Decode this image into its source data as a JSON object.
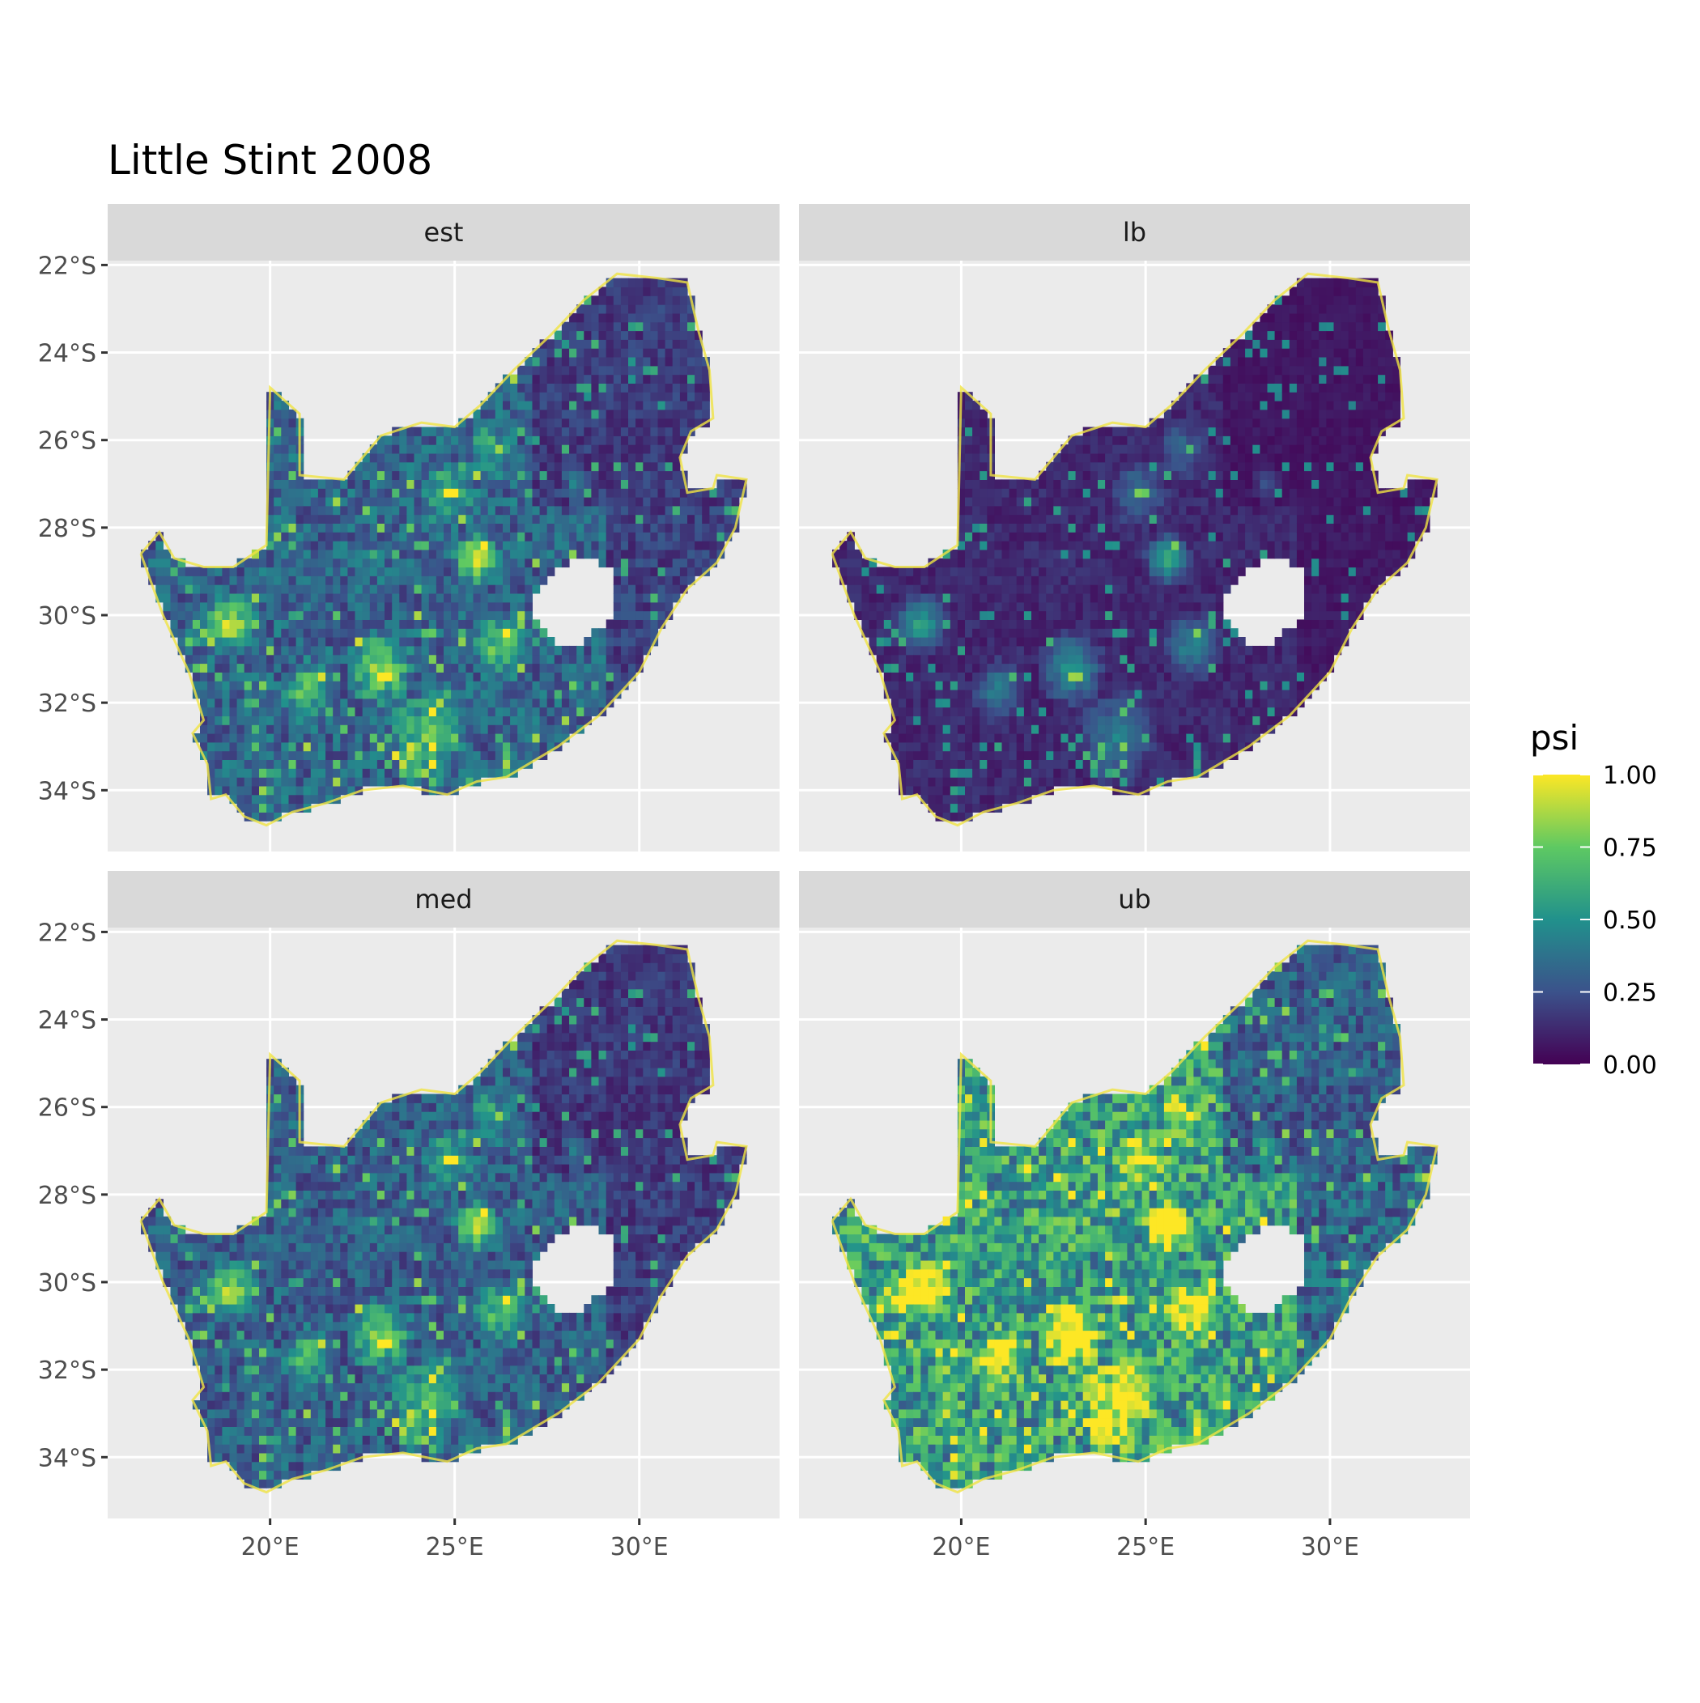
{
  "chart_data": {
    "type": "heatmap",
    "title": "Little Stint 2008",
    "xlabel": "",
    "ylabel": "",
    "facets": [
      {
        "label": "est",
        "fill_level": 0.32
      },
      {
        "label": "lb",
        "fill_level": 0.12
      },
      {
        "label": "med",
        "fill_level": 0.3
      },
      {
        "label": "ub",
        "fill_level": 0.55
      }
    ],
    "x_ticks": [
      "20°E",
      "25°E",
      "30°E"
    ],
    "x_tick_values": [
      20,
      25,
      30
    ],
    "xlim": [
      15.6,
      33.8
    ],
    "y_ticks": [
      "22°S",
      "24°S",
      "26°S",
      "28°S",
      "30°S",
      "32°S",
      "34°S"
    ],
    "y_tick_values": [
      -22,
      -24,
      -26,
      -28,
      -30,
      -32,
      -34
    ],
    "ylim": [
      -35.4,
      -21.9
    ],
    "legend": {
      "title": "psi",
      "placement": "right",
      "breaks": [
        "1.00",
        "0.75",
        "0.50",
        "0.25",
        "0.00"
      ],
      "break_values": [
        1.0,
        0.75,
        0.5,
        0.25,
        0.0
      ],
      "colors": [
        "#440154",
        "#3b528b",
        "#21918c",
        "#5ec962",
        "#fde725"
      ]
    },
    "panel_background": "#ebebeb",
    "strip_background": "#d9d9d9",
    "grid": true
  }
}
